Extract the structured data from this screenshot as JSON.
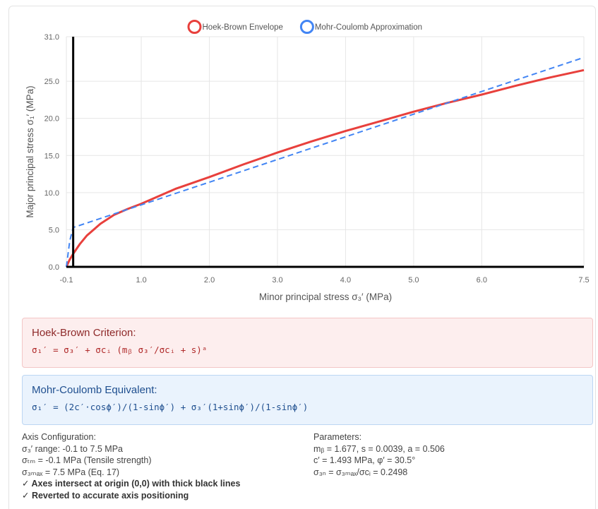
{
  "chart_data": {
    "type": "line",
    "title": "",
    "xlabel": "Minor principal stress σ₃′ (MPa)",
    "ylabel": "Major principal stress σ₁′ (MPa)",
    "xlim": [
      -0.1,
      7.5
    ],
    "ylim": [
      0,
      31
    ],
    "x_ticks": [
      -0.1,
      1.0,
      2.0,
      3.0,
      4.0,
      5.0,
      6.0,
      7.5
    ],
    "x_tick_labels": [
      "-0.1",
      "1.0",
      "2.0",
      "3.0",
      "4.0",
      "5.0",
      "6.0",
      "7.5"
    ],
    "y_ticks": [
      0,
      5,
      10,
      15,
      20,
      25,
      31
    ],
    "y_tick_labels": [
      "0.0",
      "5.0",
      "10.0",
      "15.0",
      "20.0",
      "25.0",
      "31.0"
    ],
    "grid": true,
    "legend_position": "top-center",
    "series": [
      {
        "name": "Hoek-Brown Envelope",
        "color": "#e8403c",
        "dash": "solid",
        "x": [
          -0.1,
          -0.05,
          0.0,
          0.1,
          0.2,
          0.4,
          0.6,
          0.8,
          1.0,
          1.5,
          2.0,
          2.5,
          3.0,
          3.5,
          4.0,
          4.5,
          5.0,
          5.5,
          6.0,
          6.5,
          7.0,
          7.5
        ],
        "y": [
          0.0,
          1.0,
          1.75,
          3.1,
          4.2,
          5.8,
          7.0,
          7.8,
          8.5,
          10.5,
          12.1,
          13.8,
          15.4,
          16.9,
          18.3,
          19.6,
          20.9,
          22.1,
          23.2,
          24.4,
          25.5,
          26.5
        ]
      },
      {
        "name": "Mohr-Coulomb Approximation",
        "color": "#4285f4",
        "dash": "dashed",
        "x": [
          -0.1,
          -0.05,
          0.0,
          7.5
        ],
        "y": [
          0.0,
          3.5,
          5.3,
          28.2
        ]
      }
    ],
    "axis_lines": {
      "x_at": 0,
      "y_at": 0,
      "color": "#000000"
    }
  },
  "hoek_brown": {
    "title": "Hoek-Brown Criterion:",
    "formula": "σ₁′ = σ₃′ + σcᵢ (mᵦ σ₃′/σcᵢ + s)ᵃ"
  },
  "mohr_coulomb": {
    "title": "Mohr-Coulomb Equivalent:",
    "formula": "σ₁′ = (2c′·cosϕ′)/(1-sinϕ′) + σ₃′(1+sinϕ′)/(1-sinϕ′)"
  },
  "axis_config": {
    "heading": "Axis Configuration:",
    "lines": [
      "σ₃′ range: -0.1 to 7.5 MPa",
      "σₜₘ = -0.1 MPa (Tensile strength)",
      "σ₃ₘₐₓ = 7.5 MPa (Eq. 17)"
    ],
    "checks": [
      "✓ Axes intersect at origin (0,0) with thick black lines",
      "✓ Reverted to accurate axis positioning"
    ]
  },
  "parameters": {
    "heading": "Parameters:",
    "lines": [
      "mᵦ = 1.677, s = 0.0039, a = 0.506",
      "c′ = 1.493 MPa, φ′ = 30.5°",
      "σ₃ₙ = σ₃ₘₐₓ/σcᵢ = 0.2498"
    ]
  }
}
